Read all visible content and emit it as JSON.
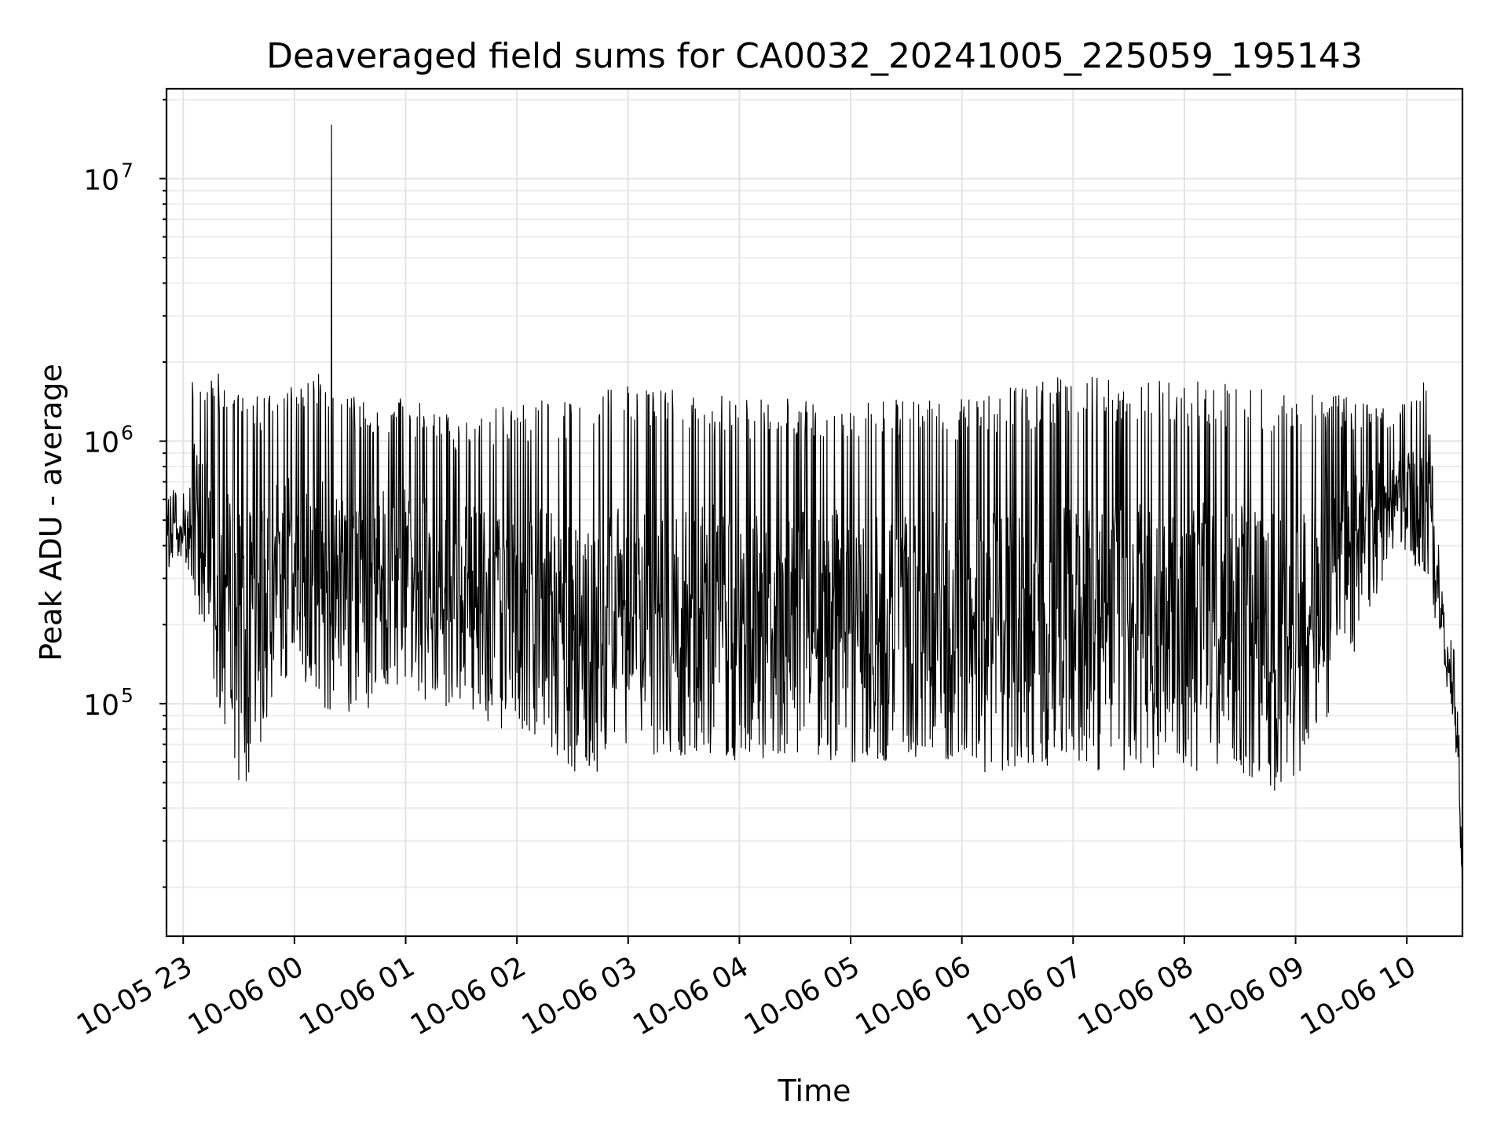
{
  "chart_data": {
    "type": "line",
    "title": "Deaveraged field sums for CA0032_20241005_225059_195143",
    "xlabel": "Time",
    "ylabel": "Peak ADU - average",
    "y_scale": "log",
    "grid": true,
    "x_range": [
      "2024-10-05T22:51:00",
      "2024-10-06T10:30:00"
    ],
    "ylim": [
      13000,
      22000000
    ],
    "x_ticks": [
      {
        "t": "2024-10-05T23:00:00",
        "label": "10-05 23"
      },
      {
        "t": "2024-10-06T00:00:00",
        "label": "10-06 00"
      },
      {
        "t": "2024-10-06T01:00:00",
        "label": "10-06 01"
      },
      {
        "t": "2024-10-06T02:00:00",
        "label": "10-06 02"
      },
      {
        "t": "2024-10-06T03:00:00",
        "label": "10-06 03"
      },
      {
        "t": "2024-10-06T04:00:00",
        "label": "10-06 04"
      },
      {
        "t": "2024-10-06T05:00:00",
        "label": "10-06 05"
      },
      {
        "t": "2024-10-06T06:00:00",
        "label": "10-06 06"
      },
      {
        "t": "2024-10-06T07:00:00",
        "label": "10-06 07"
      },
      {
        "t": "2024-10-06T08:00:00",
        "label": "10-06 08"
      },
      {
        "t": "2024-10-06T09:00:00",
        "label": "10-06 09"
      },
      {
        "t": "2024-10-06T10:00:00",
        "label": "10-06 10"
      }
    ],
    "y_ticks": [
      {
        "value": 100000,
        "base": "10",
        "exp": "5"
      },
      {
        "value": 1000000,
        "base": "10",
        "exp": "6"
      },
      {
        "value": 10000000,
        "base": "10",
        "exp": "7"
      }
    ],
    "series": [
      {
        "color": "#000000",
        "envelope": [
          {
            "t": "2024-10-05T22:51:00",
            "low": 320000,
            "high": 650000
          },
          {
            "t": "2024-10-05T23:00:00",
            "low": 370000,
            "high": 650000
          },
          {
            "t": "2024-10-05T23:05:00",
            "low": 270000,
            "high": 1850000
          },
          {
            "t": "2024-10-05T23:20:00",
            "low": 90000,
            "high": 1800000
          },
          {
            "t": "2024-10-05T23:30:00",
            "low": 45000,
            "high": 1600000
          },
          {
            "t": "2024-10-05T23:40:00",
            "low": 60000,
            "high": 1500000
          },
          {
            "t": "2024-10-05T23:50:00",
            "low": 120000,
            "high": 1500000
          },
          {
            "t": "2024-10-06T00:00:00",
            "low": 130000,
            "high": 1650000
          },
          {
            "t": "2024-10-06T00:15:00",
            "low": 95000,
            "high": 1850000
          },
          {
            "t": "2024-10-06T00:30:00",
            "low": 90000,
            "high": 1500000
          },
          {
            "t": "2024-10-06T01:00:00",
            "low": 110000,
            "high": 1450000
          },
          {
            "t": "2024-10-06T01:30:00",
            "low": 90000,
            "high": 1250000
          },
          {
            "t": "2024-10-06T02:00:00",
            "low": 75000,
            "high": 1400000
          },
          {
            "t": "2024-10-06T02:40:00",
            "low": 50000,
            "high": 1500000
          },
          {
            "t": "2024-10-06T03:00:00",
            "low": 60000,
            "high": 1650000
          },
          {
            "t": "2024-10-06T04:00:00",
            "low": 60000,
            "high": 1500000
          },
          {
            "t": "2024-10-06T05:00:00",
            "low": 60000,
            "high": 1450000
          },
          {
            "t": "2024-10-06T06:00:00",
            "low": 55000,
            "high": 1450000
          },
          {
            "t": "2024-10-06T07:00:00",
            "low": 55000,
            "high": 1800000
          },
          {
            "t": "2024-10-06T08:00:00",
            "low": 55000,
            "high": 1700000
          },
          {
            "t": "2024-10-06T09:00:00",
            "low": 45000,
            "high": 1650000
          },
          {
            "t": "2024-10-06T09:55:00",
            "low": 400000,
            "high": 1300000
          },
          {
            "t": "2024-10-06T10:10:00",
            "low": 300000,
            "high": 1800000
          },
          {
            "t": "2024-10-06T10:20:00",
            "low": 140000,
            "high": 230000
          },
          {
            "t": "2024-10-06T10:27:00",
            "low": 60000,
            "high": 150000
          },
          {
            "t": "2024-10-06T10:30:00",
            "low": 15000,
            "high": 30000
          }
        ],
        "spikes": [
          {
            "t": "2024-10-06T00:20:00",
            "value": 16000000
          }
        ]
      }
    ]
  }
}
